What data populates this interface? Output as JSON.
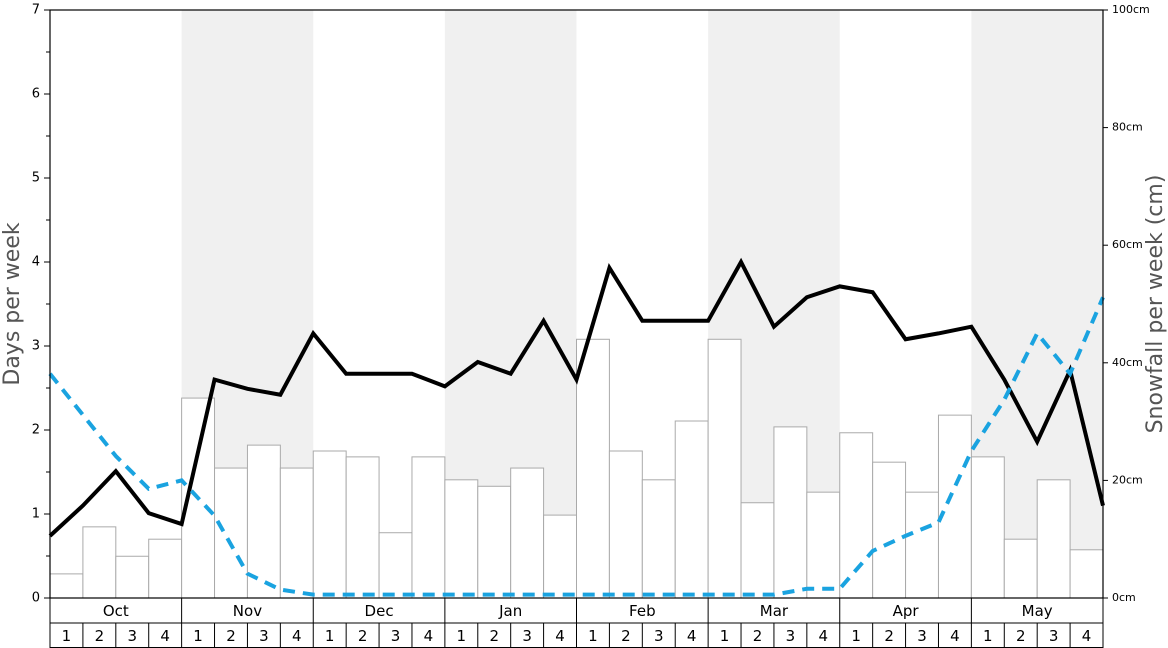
{
  "chart_data": {
    "type": "bar",
    "ylabel": "Days per week",
    "y2label": "Snowfall per week (cm)",
    "months": [
      "Oct",
      "Nov",
      "Dec",
      "Jan",
      "Feb",
      "Mar",
      "Apr",
      "May"
    ],
    "weeks": [
      1,
      2,
      3,
      4
    ],
    "shade": "#f0f0f0",
    "ylim": [
      0,
      7
    ],
    "yticks": [
      0,
      1,
      2,
      3,
      4,
      5,
      6,
      7
    ],
    "y2lim": [
      0,
      100
    ],
    "y2ticks": [
      {
        "value": 0,
        "label": "0cm"
      },
      {
        "value": 20,
        "label": "20cm"
      },
      {
        "value": 40,
        "label": "40cm"
      },
      {
        "value": 60,
        "label": "60cm"
      },
      {
        "value": 80,
        "label": "80cm"
      },
      {
        "value": 100,
        "label": "100cm"
      }
    ],
    "series": [
      {
        "type": "bar",
        "axis": "y2",
        "color": "#ffffff",
        "edge": "#aaaaaa",
        "values": [
          4.1,
          12.1,
          7.1,
          10.0,
          34.0,
          22.1,
          26.0,
          22.1,
          25.0,
          24.0,
          11.1,
          24.0,
          20.1,
          19.0,
          22.1,
          14.1,
          44.0,
          25.0,
          20.1,
          30.1,
          44.0,
          16.2,
          29.1,
          18.0,
          28.1,
          23.1,
          18.0,
          31.1,
          24.0,
          10.0,
          20.1,
          8.2
        ]
      },
      {
        "type": "line",
        "color": "#000000",
        "dashed": false,
        "values": [
          0.74,
          1.1,
          1.51,
          1.01,
          0.88,
          2.6,
          2.49,
          2.42,
          3.15,
          2.67,
          2.67,
          2.67,
          2.52,
          2.81,
          2.67,
          3.3,
          2.6,
          3.93,
          3.3,
          3.3,
          3.3,
          4.0,
          3.23,
          3.58,
          3.71,
          3.64,
          3.08,
          3.15,
          3.23,
          2.6,
          1.86,
          2.71,
          1.1
        ]
      },
      {
        "type": "line",
        "color": "#1aa3e0",
        "dashed": true,
        "values": [
          2.67,
          2.18,
          1.69,
          1.3,
          1.4,
          0.98,
          0.29,
          0.1,
          0.04,
          0.04,
          0.04,
          0.04,
          0.04,
          0.04,
          0.04,
          0.04,
          0.04,
          0.04,
          0.04,
          0.04,
          0.04,
          0.04,
          0.04,
          0.11,
          0.11,
          0.56,
          0.74,
          0.9,
          1.75,
          2.36,
          3.15,
          2.67,
          3.58
        ]
      }
    ]
  }
}
